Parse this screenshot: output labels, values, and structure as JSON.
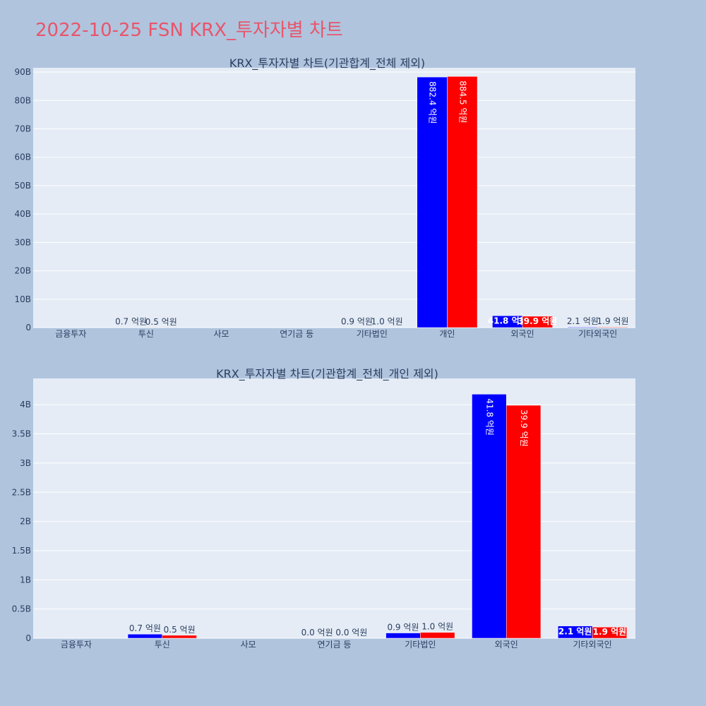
{
  "page": {
    "title": "2022-10-25 FSN KRX_투자자별 차트"
  },
  "colors": {
    "buy": "#0000ff",
    "sell": "#ff0000",
    "title": "#e8556b",
    "background": "#b0c4de",
    "plot_background": "#e5ecf6"
  },
  "chart_data": [
    {
      "type": "bar",
      "title": "KRX_투자자별 차트(기관합계_전체 제외)",
      "categories": [
        "금융투자",
        "투신",
        "사모",
        "연기금 등",
        "기타법인",
        "개인",
        "외국인",
        "기타외국인"
      ],
      "series": [
        {
          "values": [
            0,
            70000000,
            0,
            0,
            90000000,
            88240000000,
            4180000000,
            210000000
          ]
        },
        {
          "values": [
            0,
            50000000,
            0,
            0,
            100000000,
            88450000000,
            3990000000,
            190000000
          ]
        }
      ],
      "bar_labels": [
        [
          "",
          "0.7 억원",
          "",
          "",
          "0.9 억원",
          "882.4 억원",
          "41.8 억원",
          "2.1 억원"
        ],
        [
          "",
          "0.5 억원",
          "",
          "",
          "1.0 억원",
          "884.5 억원",
          "39.9 억원",
          "1.9 억원"
        ]
      ],
      "ylim": [
        0,
        91500000000
      ],
      "yticks": [
        0,
        10000000000,
        20000000000,
        30000000000,
        40000000000,
        50000000000,
        60000000000,
        70000000000,
        80000000000,
        90000000000
      ],
      "ytick_labels": [
        "0",
        "10B",
        "20B",
        "30B",
        "40B",
        "50B",
        "60B",
        "70B",
        "80B",
        "90B"
      ],
      "grid": true
    },
    {
      "type": "bar",
      "title": "KRX_투자자별 차트(기관합계_전체_개인 제외)",
      "categories": [
        "금융투자",
        "투신",
        "사모",
        "연기금 등",
        "기타법인",
        "외국인",
        "기타외국인"
      ],
      "series": [
        {
          "values": [
            0,
            70000000,
            0,
            0,
            90000000,
            4180000000,
            210000000
          ]
        },
        {
          "values": [
            0,
            50000000,
            0,
            0,
            100000000,
            3990000000,
            190000000
          ]
        }
      ],
      "bar_labels": [
        [
          "",
          "0.7 억원",
          "",
          "0.0 억원",
          "0.9 억원",
          "41.8 억원",
          "2.1 억원"
        ],
        [
          "",
          "0.5 억원",
          "",
          "0.0 억원",
          "1.0 억원",
          "39.9 억원",
          "1.9 억원"
        ]
      ],
      "ylim": [
        0,
        4450000000
      ],
      "yticks": [
        0,
        500000000,
        1000000000,
        1500000000,
        2000000000,
        2500000000,
        3000000000,
        3500000000,
        4000000000
      ],
      "ytick_labels": [
        "0",
        "0.5B",
        "1B",
        "1.5B",
        "2B",
        "2.5B",
        "3B",
        "3.5B",
        "4B"
      ],
      "grid": true
    }
  ]
}
